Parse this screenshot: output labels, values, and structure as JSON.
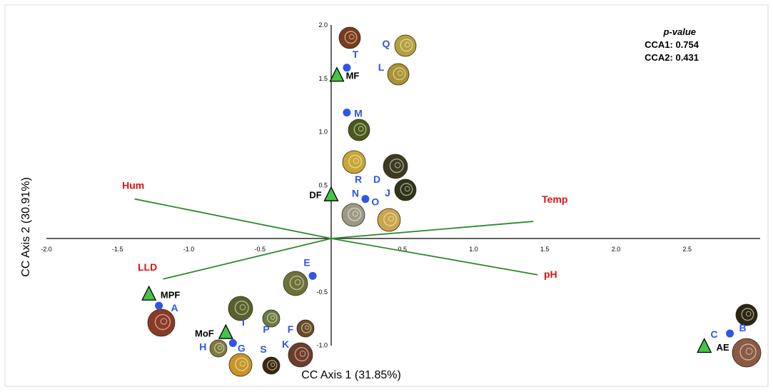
{
  "chart_data": {
    "type": "scatter",
    "title": "",
    "xlabel": "CC Axis 1 (31.85%)",
    "ylabel": "CC Axis 2 (30.91%)",
    "xlim": [
      -2.0,
      3.0
    ],
    "ylim": [
      -1.0,
      2.0
    ],
    "x_ticks": [
      "-2.0",
      "-1.5",
      "-1.0",
      "-0.5",
      "0.5",
      "1.0",
      "1.5",
      "2.0",
      "2.5"
    ],
    "y_ticks": [
      "2.0",
      "1.5",
      "1.0",
      "0.5",
      "-0.5",
      "-1.0"
    ],
    "grid": false,
    "pvalue": {
      "title": "p-value",
      "cca1": "CCA1: 0.754",
      "cca2": "CCA2: 0.431"
    },
    "colors": {
      "vector": "#2e8b2e",
      "vector_label": "#e01010",
      "species": "#2e56e6",
      "site_fill": "#45c545",
      "site_stroke": "#000000",
      "axis": "#000000"
    },
    "environment_vectors": [
      {
        "name": "Hum",
        "x": -1.38,
        "y": 0.37
      },
      {
        "name": "Temp",
        "x": 1.42,
        "y": 0.16
      },
      {
        "name": "pH",
        "x": 1.45,
        "y": -0.34
      },
      {
        "name": "LLD",
        "x": -1.18,
        "y": -0.38
      }
    ],
    "sites": [
      {
        "name": "MF",
        "x": 0.04,
        "y": 1.53
      },
      {
        "name": "DF",
        "x": 0.0,
        "y": 0.41
      },
      {
        "name": "MPF",
        "x": -1.28,
        "y": -0.52
      },
      {
        "name": "MoF",
        "x": -0.74,
        "y": -0.88
      },
      {
        "name": "AE",
        "x": 2.62,
        "y": -1.01
      }
    ],
    "species": [
      {
        "name": "T",
        "x": 0.11,
        "y": 1.6
      },
      {
        "name": "M",
        "x": 0.11,
        "y": 1.18
      },
      {
        "name": "N",
        "x": 0.24,
        "y": 0.37
      },
      {
        "name": "O",
        "x": 0.24,
        "y": 0.37
      },
      {
        "name": "E",
        "x": -0.13,
        "y": -0.35
      },
      {
        "name": "A",
        "x": -1.21,
        "y": -0.63
      },
      {
        "name": "G",
        "x": -0.69,
        "y": -0.98
      },
      {
        "name": "H",
        "x": -0.69,
        "y": -0.98
      },
      {
        "name": "B",
        "x": 2.8,
        "y": -0.89
      },
      {
        "name": "C",
        "x": 2.8,
        "y": -0.89
      }
    ],
    "thumbnail_labels": [
      "Q",
      "L",
      "R",
      "D",
      "J",
      "I",
      "P",
      "F",
      "K",
      "S"
    ]
  }
}
